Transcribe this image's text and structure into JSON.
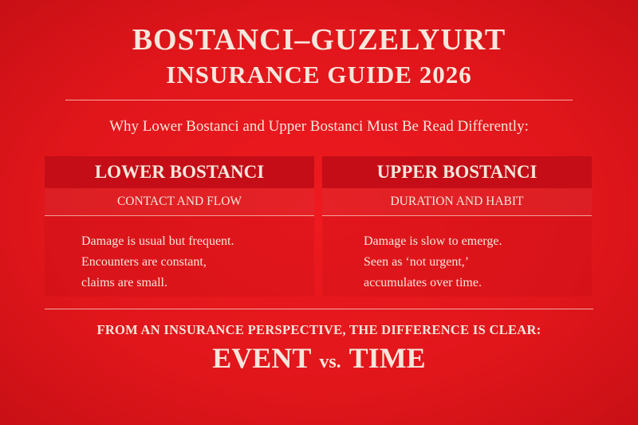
{
  "colors": {
    "background": "#e0161b",
    "panel_header": "#c40d16",
    "text": "#f6e6dc"
  },
  "title": {
    "line1": "BOSTANCI–GUZELYURT",
    "line2": "INSURANCE GUIDE 2026"
  },
  "subtitle": "Why Lower Bostanci and Upper Bostanci Must Be Read Differently:",
  "panels": [
    {
      "heading": "LOWER BOSTANCI",
      "subheading": "CONTACT AND FLOW",
      "lines": [
        "Damage is usual but frequent.",
        "Encounters are constant,",
        "claims are small."
      ]
    },
    {
      "heading": "UPPER BOSTANCI",
      "subheading": "DURATION AND HABIT",
      "lines": [
        "Damage is slow to emerge.",
        "Seen as ‘not urgent,’",
        "accumulates over time."
      ]
    }
  ],
  "footer": {
    "lead": "FROM AN INSURANCE PERSPECTIVE, THE DIFFERENCE IS CLEAR:",
    "left": "EVENT",
    "vs": "vs.",
    "right": "TIME"
  }
}
